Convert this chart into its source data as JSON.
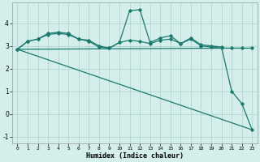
{
  "xlabel": "Humidex (Indice chaleur)",
  "bg_color": "#d4eeec",
  "grid_color": "#b8d8d5",
  "line_color": "#1a7a6e",
  "xlim": [
    -0.5,
    23.5
  ],
  "ylim": [
    -1.3,
    4.9
  ],
  "xticks": [
    0,
    1,
    2,
    3,
    4,
    5,
    6,
    7,
    8,
    9,
    10,
    11,
    12,
    13,
    14,
    15,
    16,
    17,
    18,
    19,
    20,
    21,
    22,
    23
  ],
  "yticks": [
    -1,
    0,
    1,
    2,
    3,
    4
  ],
  "series": {
    "line_jagged": {
      "x": [
        0,
        1,
        2,
        3,
        4,
        5,
        6,
        7,
        8,
        9,
        10,
        11,
        12,
        13,
        14,
        15,
        16,
        17,
        18,
        19,
        20,
        21,
        22,
        23
      ],
      "y": [
        2.85,
        3.2,
        3.3,
        3.55,
        3.6,
        3.55,
        3.3,
        3.25,
        3.0,
        2.9,
        3.15,
        4.55,
        4.6,
        3.15,
        3.35,
        3.45,
        3.1,
        3.35,
        3.05,
        3.0,
        2.95,
        1.0,
        0.45,
        -0.7
      ]
    },
    "line_smooth": {
      "x": [
        0,
        1,
        2,
        3,
        4,
        5,
        6,
        7,
        8,
        9,
        10,
        11,
        12,
        13,
        14,
        15,
        16,
        17,
        18,
        19,
        20,
        21,
        22,
        23
      ],
      "y": [
        2.85,
        3.2,
        3.3,
        3.5,
        3.55,
        3.5,
        3.3,
        3.2,
        2.95,
        2.9,
        3.15,
        3.25,
        3.2,
        3.1,
        3.25,
        3.3,
        3.1,
        3.3,
        3.0,
        2.95,
        2.9,
        2.9,
        2.9,
        2.9
      ]
    },
    "line_flat1": {
      "x": [
        0,
        20
      ],
      "y": [
        2.85,
        2.9
      ]
    },
    "line_diagonal": {
      "x": [
        0,
        23
      ],
      "y": [
        2.85,
        -0.7
      ]
    }
  }
}
